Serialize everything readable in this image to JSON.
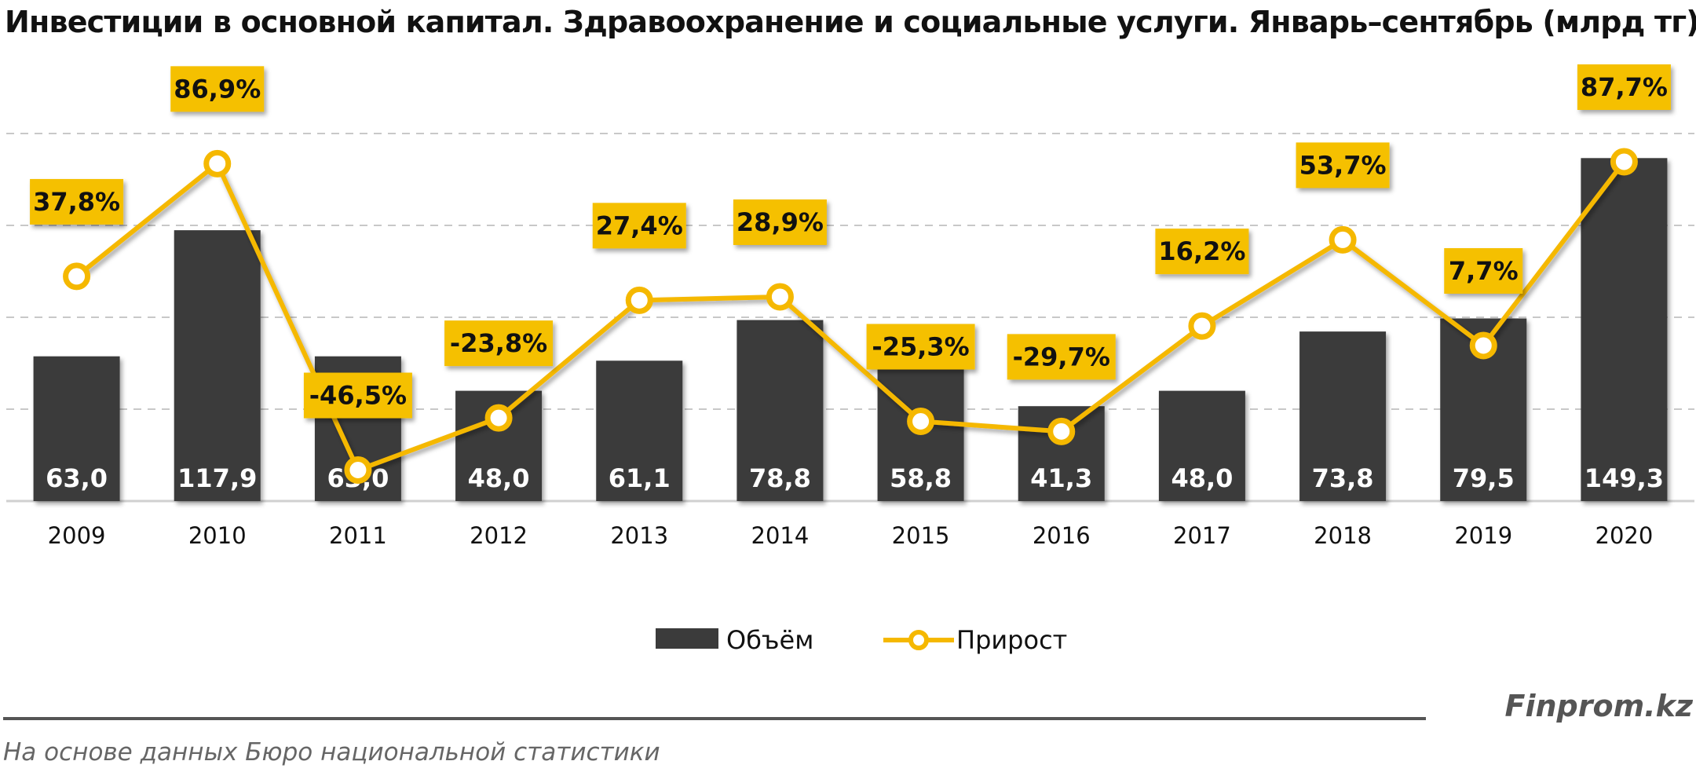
{
  "header": {
    "title": "Инвестиции в основной капитал. Здравоохранение и социальные услуги. Январь–сентябрь (млрд тг)"
  },
  "footer": {
    "brand": "Finprom.kz",
    "source": "На основе данных Бюро национальной статистики"
  },
  "colors": {
    "bar": "#3b3b3b",
    "line": "#f5b800",
    "label_box": "#f5c000",
    "grid": "#c8c8c8"
  },
  "chart_data": {
    "type": "bar",
    "title": "Инвестиции в основной капитал. Здравоохранение и социальные услуги. Январь–сентябрь (млрд тг)",
    "categories": [
      "2009",
      "2010",
      "2011",
      "2012",
      "2013",
      "2014",
      "2015",
      "2016",
      "2017",
      "2018",
      "2019",
      "2020"
    ],
    "series": [
      {
        "name": "Объём",
        "type": "bar",
        "axis": "left",
        "values": [
          63.0,
          117.9,
          63.0,
          48.0,
          61.1,
          78.8,
          58.8,
          41.3,
          48.0,
          73.8,
          79.5,
          149.3
        ],
        "labels": [
          "63,0",
          "117,9",
          "63,0",
          "48,0",
          "61,1",
          "78,8",
          "58,8",
          "41,3",
          "48,0",
          "73,8",
          "79,5",
          "149,3"
        ]
      },
      {
        "name": "Прирост",
        "type": "line",
        "axis": "right",
        "marker": "circle",
        "values": [
          37.8,
          86.9,
          -46.5,
          -23.8,
          27.4,
          28.9,
          -25.3,
          -29.7,
          16.2,
          53.7,
          7.7,
          87.7
        ],
        "labels": [
          "37,8%",
          "86,9%",
          "-46,5%",
          "-23,8%",
          "27,4%",
          "28,9%",
          "-25,3%",
          "-29,7%",
          "16,2%",
          "53,7%",
          "7,7%",
          "87,7%"
        ]
      }
    ],
    "ylim": [
      0,
      160
    ],
    "y2lim": [
      -60,
      100
    ],
    "grid": true,
    "legend": "bottom-center"
  }
}
